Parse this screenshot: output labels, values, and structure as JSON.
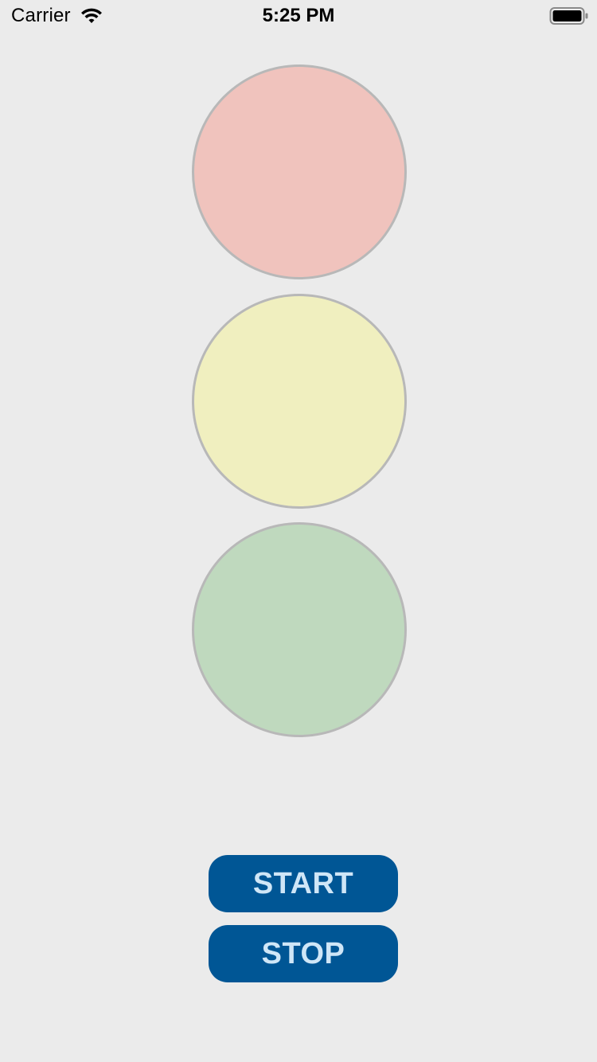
{
  "status_bar": {
    "carrier": "Carrier",
    "time": "5:25 PM",
    "wifi_icon": "wifi-icon",
    "battery_icon": "battery-full-icon"
  },
  "lights": {
    "red": {
      "color": "#f0c3bd"
    },
    "yellow": {
      "color": "#f0efbf"
    },
    "green": {
      "color": "#bfd9be"
    }
  },
  "buttons": {
    "start_label": "START",
    "stop_label": "STOP",
    "background": "#005695"
  }
}
